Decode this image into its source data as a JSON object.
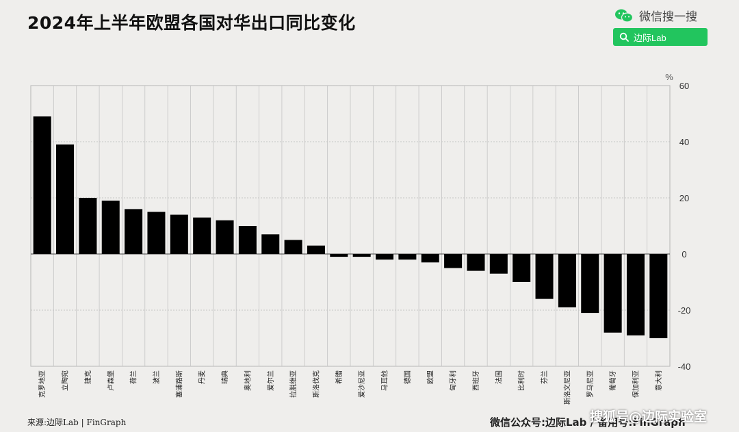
{
  "header": {
    "title": "2024年上半年欧盟各国对华出口同比变化",
    "wechat_label": "微信搜一搜",
    "wechat_icon": "wechat-icon",
    "search_label": "边际Lab",
    "search_icon": "search-icon",
    "accent_color": "#22c55e"
  },
  "footer": {
    "source": "来源:边际Lab | FinGraph",
    "public_account": "微信公众号:边际Lab / 备用号:FinGraph",
    "watermark": "搜狐号@边际实验室"
  },
  "chart_data": {
    "type": "bar",
    "title": "2024年上半年欧盟各国对华出口同比变化",
    "ylabel": "%",
    "ylim": [
      -40,
      60
    ],
    "yticks": [
      -40,
      -20,
      0,
      20,
      40,
      60
    ],
    "y_axis_position": "right",
    "grid": true,
    "bar_color": "#000000",
    "categories": [
      "克罗地亚",
      "立陶宛",
      "捷克",
      "卢森堡",
      "荷兰",
      "波兰",
      "塞浦路斯",
      "丹麦",
      "瑞典",
      "奥地利",
      "爱尔兰",
      "拉脱维亚",
      "斯洛伐克",
      "希腊",
      "爱沙尼亚",
      "马耳他",
      "德国",
      "欧盟",
      "匈牙利",
      "西班牙",
      "法国",
      "比利时",
      "芬兰",
      "斯洛文尼亚",
      "罗马尼亚",
      "葡萄牙",
      "保加利亚",
      "意大利"
    ],
    "values": [
      49,
      39,
      20,
      19,
      16,
      15,
      14,
      13,
      12,
      10,
      7,
      5,
      3,
      -1,
      -1,
      -2,
      -2,
      -3,
      -5,
      -6,
      -7,
      -10,
      -16,
      -19,
      -21,
      -28,
      -29,
      -30
    ]
  }
}
